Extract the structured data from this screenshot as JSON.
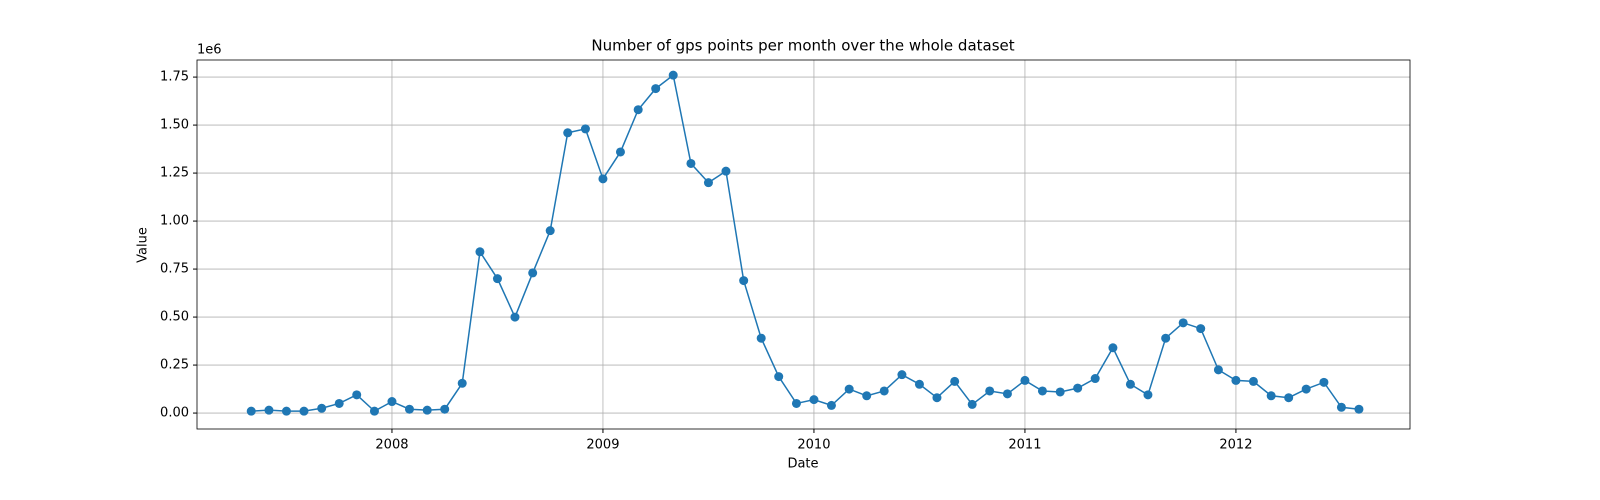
{
  "chart_data": {
    "type": "line",
    "title": "Number of gps points per month over the whole dataset",
    "x_label": "Date",
    "y_label": "Value",
    "y_offset_label": "1e6",
    "x": [
      2007.333,
      2007.417,
      2007.5,
      2007.583,
      2007.667,
      2007.75,
      2007.833,
      2007.917,
      2008.0,
      2008.083,
      2008.167,
      2008.25,
      2008.333,
      2008.417,
      2008.5,
      2008.583,
      2008.667,
      2008.75,
      2008.833,
      2008.917,
      2009.0,
      2009.083,
      2009.167,
      2009.25,
      2009.333,
      2009.417,
      2009.5,
      2009.583,
      2009.667,
      2009.75,
      2009.833,
      2009.917,
      2010.0,
      2010.083,
      2010.167,
      2010.25,
      2010.333,
      2010.417,
      2010.5,
      2010.583,
      2010.667,
      2010.75,
      2010.833,
      2010.917,
      2011.0,
      2011.083,
      2011.167,
      2011.25,
      2011.333,
      2011.417,
      2011.5,
      2011.583,
      2011.667,
      2011.75,
      2011.833,
      2011.917,
      2012.0,
      2012.083,
      2012.167,
      2012.25,
      2012.333,
      2012.417,
      2012.5,
      2012.583
    ],
    "values": [
      0.01,
      0.015,
      0.01,
      0.01,
      0.025,
      0.05,
      0.095,
      0.01,
      0.06,
      0.02,
      0.015,
      0.02,
      0.155,
      0.84,
      0.7,
      0.5,
      0.73,
      0.95,
      1.46,
      1.48,
      1.22,
      1.36,
      1.58,
      1.69,
      1.76,
      1.3,
      1.2,
      1.26,
      0.69,
      0.39,
      0.19,
      0.05,
      0.07,
      0.04,
      0.125,
      0.09,
      0.115,
      0.2,
      0.15,
      0.08,
      0.165,
      0.045,
      0.115,
      0.1,
      0.17,
      0.115,
      0.11,
      0.13,
      0.18,
      0.34,
      0.15,
      0.095,
      0.39,
      0.47,
      0.44,
      0.225,
      0.17,
      0.165,
      0.09,
      0.08,
      0.125,
      0.16,
      0.03,
      0.02
    ],
    "color": "#1f77b4",
    "xlim": [
      2007.076,
      2012.825
    ],
    "xticks": [
      2008,
      2009,
      2010,
      2011,
      2012
    ],
    "ylim": [
      -0.083,
      1.839
    ],
    "yticks": [
      {
        "value": 0,
        "label": "0.00"
      },
      0.25,
      {
        "value": 0.5,
        "label": "0.50"
      },
      0.75,
      {
        "value": 1,
        "label": "1.00"
      },
      1.25,
      {
        "value": 1.5,
        "label": "1.50"
      },
      1.75
    ],
    "grid": true
  }
}
